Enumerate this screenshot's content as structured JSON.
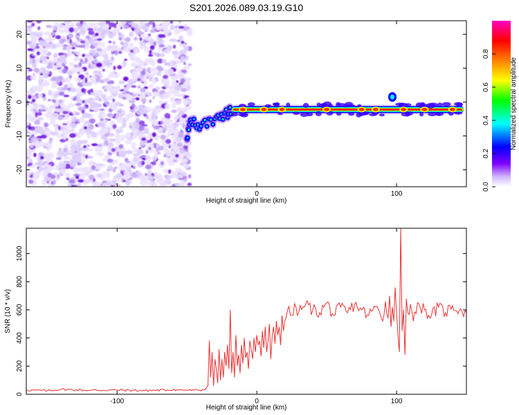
{
  "chart_data": [
    {
      "type": "heatmap",
      "title": "S201.2026.089.03.19.G10",
      "xlabel": "Height of straight line (km)",
      "ylabel": "Frequency (Hz)",
      "xlim": [
        -165,
        150
      ],
      "ylim": [
        -25,
        24
      ],
      "x_ticks": [
        -100,
        0,
        100
      ],
      "x_tick_labels": [
        "-100",
        "0",
        "100"
      ],
      "y_ticks": [
        -20,
        -10,
        0,
        10,
        20
      ],
      "y_tick_labels": [
        "-20",
        "-10",
        "0",
        "10",
        "20"
      ],
      "noise_region_x": [
        -165,
        -50
      ],
      "transition_points": [
        {
          "x": -50,
          "y": -10
        },
        {
          "x": -47,
          "y": -5.5
        },
        {
          "x": -40,
          "y": -7
        },
        {
          "x": -30,
          "y": -6
        },
        {
          "x": -22,
          "y": -3.5
        },
        {
          "x": -18,
          "y": -2.2
        }
      ],
      "ridge": {
        "x_start": -18,
        "x_end": 148,
        "frequency": -2.2
      },
      "ridge_hotspots": [
        {
          "x": -10,
          "y": -2.2
        },
        {
          "x": 5,
          "y": -2.2
        },
        {
          "x": 18,
          "y": -2.2
        },
        {
          "x": 50,
          "y": -2.2
        },
        {
          "x": 75,
          "y": -2.2
        },
        {
          "x": 85,
          "y": -2.2
        },
        {
          "x": 105,
          "y": -2.2
        },
        {
          "x": 120,
          "y": -2.2
        },
        {
          "x": 140,
          "y": -2.2
        }
      ],
      "bump": {
        "x": 97,
        "y": 1.5
      },
      "colorbar": {
        "label": "Normalized spectral amplitude",
        "range": [
          0,
          1
        ],
        "ticks": [
          "0.0",
          "0.2",
          "0.4",
          "0.6",
          "0.8"
        ],
        "colors": [
          "#ffffff",
          "#8000ff",
          "#0000ff",
          "#00ffff",
          "#00ff00",
          "#ffff00",
          "#ff8000",
          "#ff0000",
          "#ff00c0"
        ]
      }
    },
    {
      "type": "line",
      "title": "",
      "xlabel": "Height of straight line (km)",
      "ylabel": "SNR (10 * v/v)",
      "xlim": [
        -165,
        150
      ],
      "ylim": [
        0,
        1180
      ],
      "x_ticks": [
        -100,
        0,
        100
      ],
      "x_tick_labels": [
        "-100",
        "0",
        "100"
      ],
      "y_ticks": [
        0,
        200,
        400,
        600,
        800,
        1000
      ],
      "y_tick_labels": [
        "0",
        "200",
        "400",
        "600",
        "800",
        "1000"
      ],
      "color": "#e83030",
      "series": [
        {
          "name": "SNR",
          "x": [
            -165,
            -150,
            -140,
            -120,
            -100,
            -80,
            -60,
            -45,
            -38,
            -35,
            -34,
            -33,
            -32,
            -31,
            -30,
            -29,
            -28,
            -27,
            -26,
            -25,
            -24,
            -23,
            -22,
            -21,
            -20,
            -19,
            -18,
            -17,
            -16,
            -15,
            -14,
            -13,
            -12,
            -11,
            -10,
            -9,
            -8,
            -7,
            -6,
            -5,
            -4,
            -3,
            -2,
            -1,
            0,
            1,
            2,
            3,
            4,
            5,
            6,
            7,
            8,
            9,
            10,
            11,
            12,
            13,
            14,
            15,
            16,
            17,
            18,
            19,
            20,
            22,
            25,
            28,
            30,
            35,
            40,
            45,
            50,
            55,
            60,
            65,
            70,
            75,
            80,
            85,
            88,
            90,
            92,
            94,
            95,
            96,
            97,
            98,
            99,
            100,
            101,
            102,
            103,
            104,
            105,
            106,
            107,
            108,
            110,
            112,
            115,
            120,
            125,
            130,
            135,
            140,
            145,
            150
          ],
          "values": [
            30,
            25,
            35,
            28,
            30,
            26,
            32,
            28,
            30,
            60,
            380,
            120,
            300,
            60,
            250,
            180,
            80,
            320,
            100,
            250,
            120,
            300,
            200,
            350,
            180,
            600,
            150,
            300,
            120,
            420,
            200,
            280,
            150,
            350,
            220,
            400,
            260,
            300,
            180,
            380,
            320,
            250,
            400,
            300,
            420,
            350,
            380,
            270,
            450,
            330,
            480,
            300,
            380,
            500,
            250,
            420,
            480,
            360,
            520,
            420,
            480,
            350,
            560,
            450,
            520,
            600,
            560,
            620,
            580,
            640,
            600,
            580,
            650,
            560,
            620,
            580,
            640,
            600,
            560,
            620,
            580,
            520,
            660,
            540,
            700,
            480,
            620,
            520,
            760,
            580,
            420,
            300,
            1180,
            450,
            600,
            280,
            680,
            580,
            640,
            520,
            650,
            600,
            560,
            620,
            580,
            630,
            600,
            580
          ]
        }
      ]
    }
  ]
}
